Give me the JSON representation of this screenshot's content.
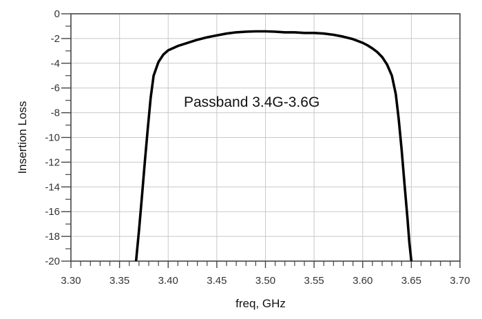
{
  "chart_data": {
    "type": "line",
    "title": "",
    "xlabel": "freq, GHz",
    "ylabel": "Insertion Loss",
    "xlim": [
      3.3,
      3.7
    ],
    "ylim": [
      -20,
      0
    ],
    "grid": true,
    "x_ticks": [
      "3.30",
      "3.35",
      "3.40",
      "3.45",
      "3.50",
      "3.55",
      "3.60",
      "3.65",
      "3.70"
    ],
    "y_ticks": [
      "0",
      "-2",
      "-4",
      "-6",
      "-8",
      "-10",
      "-12",
      "-14",
      "-16",
      "-18",
      "-20"
    ],
    "annotations": [
      {
        "text": "Passband 3.4G-3.6G",
        "x": 3.42,
        "y": -7
      }
    ],
    "series": [
      {
        "name": "Insertion Loss",
        "color": "#000000",
        "x": [
          3.367,
          3.37,
          3.373,
          3.376,
          3.379,
          3.382,
          3.385,
          3.39,
          3.395,
          3.4,
          3.41,
          3.42,
          3.43,
          3.44,
          3.45,
          3.46,
          3.47,
          3.48,
          3.49,
          3.5,
          3.51,
          3.52,
          3.53,
          3.54,
          3.55,
          3.56,
          3.57,
          3.58,
          3.59,
          3.6,
          3.605,
          3.61,
          3.615,
          3.62,
          3.625,
          3.63,
          3.634,
          3.637,
          3.64,
          3.643,
          3.646,
          3.648,
          3.65
        ],
        "y": [
          -20.0,
          -17.5,
          -14.8,
          -12.0,
          -9.3,
          -6.8,
          -5.0,
          -3.9,
          -3.3,
          -2.95,
          -2.6,
          -2.35,
          -2.1,
          -1.9,
          -1.75,
          -1.6,
          -1.5,
          -1.45,
          -1.42,
          -1.42,
          -1.45,
          -1.5,
          -1.5,
          -1.55,
          -1.55,
          -1.6,
          -1.7,
          -1.85,
          -2.05,
          -2.35,
          -2.55,
          -2.8,
          -3.1,
          -3.5,
          -4.1,
          -5.0,
          -6.5,
          -8.5,
          -11.0,
          -13.8,
          -16.5,
          -18.5,
          -20.0
        ]
      }
    ]
  }
}
